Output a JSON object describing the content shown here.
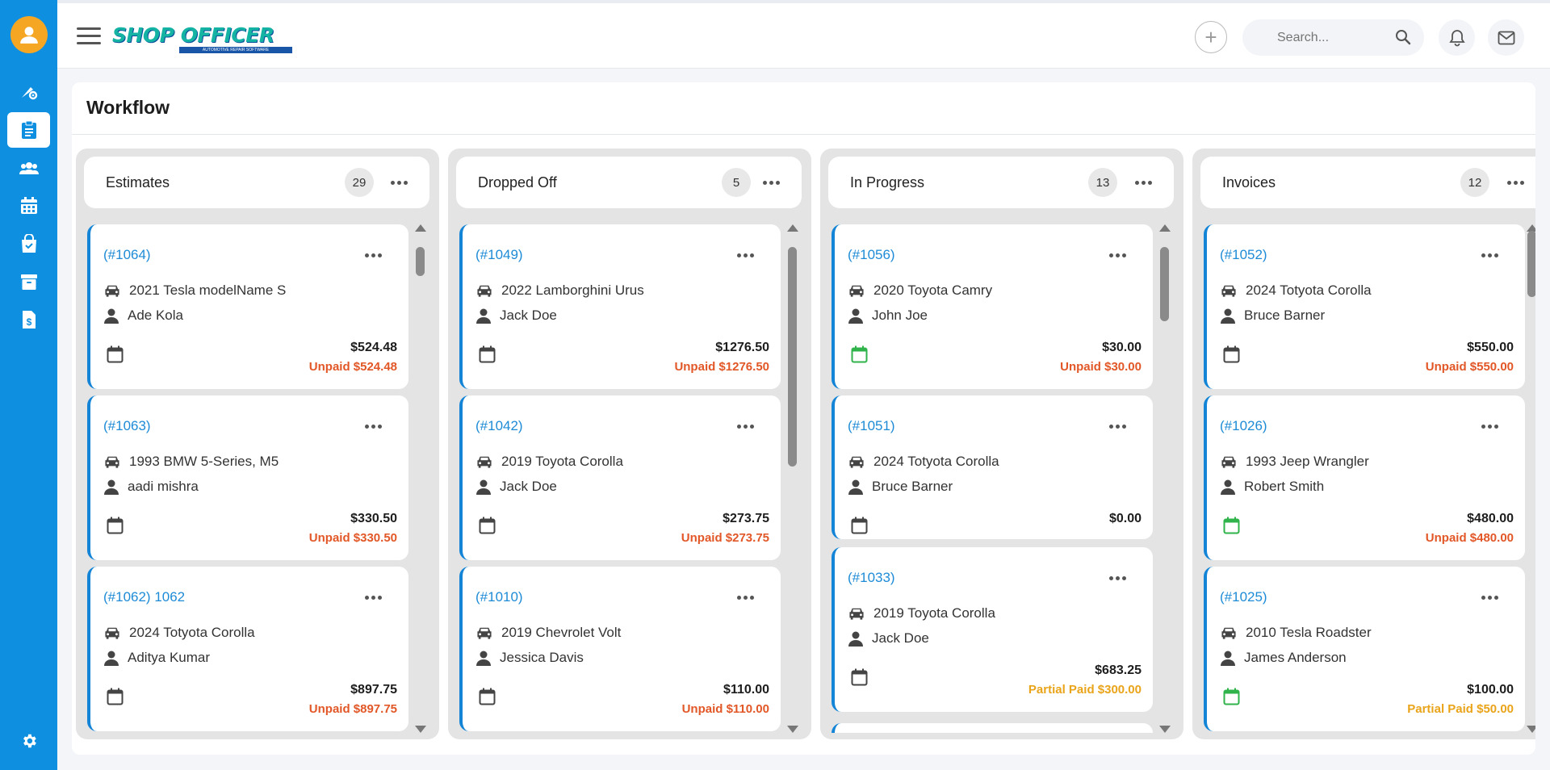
{
  "app": {
    "logo_text": "SHOP OFFICER",
    "logo_tagline": "AUTOMOTIVE REPAIR SOFTWARE"
  },
  "colors": {
    "sidebar": "#0f8fe0",
    "accent": "#1e8bd6",
    "unpaid": "#e25727",
    "partial": "#e9a41a",
    "avatar": "#f5a623"
  },
  "sidebar": {
    "items": [
      {
        "icon": "tools-gear-icon"
      },
      {
        "icon": "clipboard-icon",
        "active": true
      },
      {
        "icon": "users-icon"
      },
      {
        "icon": "calendar-icon"
      },
      {
        "icon": "shopping-bag-icon"
      },
      {
        "icon": "archive-icon"
      },
      {
        "icon": "invoice-dollar-icon"
      },
      {
        "icon": "settings-gear-icon"
      }
    ]
  },
  "topbar": {
    "search_placeholder": "Search..."
  },
  "page": {
    "title": "Workflow"
  },
  "columns": [
    {
      "title": "Estimates",
      "count": "29",
      "cards": [
        {
          "id": "(#1064)",
          "vehicle": "2021 Tesla modelName S",
          "customer": "Ade Kola",
          "amount": "$524.48",
          "status": "Unpaid $524.48",
          "status_type": "unpaid",
          "calendar_color": "#444444"
        },
        {
          "id": "(#1063)",
          "vehicle": "1993 BMW 5-Series, M5",
          "customer": "aadi mishra",
          "amount": "$330.50",
          "status": "Unpaid $330.50",
          "status_type": "unpaid",
          "calendar_color": "#444444"
        },
        {
          "id": "(#1062) 1062",
          "vehicle": "2024 Totyota Corolla",
          "customer": "Aditya Kumar",
          "amount": "$897.75",
          "status": "Unpaid $897.75",
          "status_type": "unpaid",
          "calendar_color": "#444444"
        }
      ]
    },
    {
      "title": "Dropped Off",
      "count": "5",
      "cards": [
        {
          "id": "(#1049)",
          "vehicle": "2022 Lamborghini Urus",
          "customer": "Jack Doe",
          "amount": "$1276.50",
          "status": "Unpaid $1276.50",
          "status_type": "unpaid",
          "calendar_color": "#444444"
        },
        {
          "id": "(#1042)",
          "vehicle": "2019 Toyota Corolla",
          "customer": "Jack Doe",
          "amount": "$273.75",
          "status": "Unpaid $273.75",
          "status_type": "unpaid",
          "calendar_color": "#444444"
        },
        {
          "id": "(#1010)",
          "vehicle": "2019 Chevrolet Volt",
          "customer": "Jessica Davis",
          "amount": "$110.00",
          "status": "Unpaid $110.00",
          "status_type": "unpaid",
          "calendar_color": "#444444"
        }
      ]
    },
    {
      "title": "In Progress",
      "count": "13",
      "cards": [
        {
          "id": "(#1056)",
          "vehicle": "2020 Toyota Camry",
          "customer": "John Joe",
          "amount": "$30.00",
          "status": "Unpaid $30.00",
          "status_type": "unpaid",
          "calendar_color": "#2fb34a"
        },
        {
          "id": "(#1051)",
          "vehicle": "2024 Totyota Corolla",
          "customer": "Bruce Barner",
          "amount": "$0.00",
          "status": "",
          "status_type": "none",
          "calendar_color": "#444444"
        },
        {
          "id": "(#1033)",
          "vehicle": "2019 Toyota Corolla",
          "customer": "Jack Doe",
          "amount": "$683.25",
          "status": "Partial Paid $300.00",
          "status_type": "partial",
          "calendar_color": "#444444"
        }
      ]
    },
    {
      "title": "Invoices",
      "count": "12",
      "cards": [
        {
          "id": "(#1052)",
          "vehicle": "2024 Totyota Corolla",
          "customer": "Bruce Barner",
          "amount": "$550.00",
          "status": "Unpaid $550.00",
          "status_type": "unpaid",
          "calendar_color": "#444444"
        },
        {
          "id": "(#1026)",
          "vehicle": "1993 Jeep Wrangler",
          "customer": "Robert Smith",
          "amount": "$480.00",
          "status": "Unpaid $480.00",
          "status_type": "unpaid",
          "calendar_color": "#2fb34a"
        },
        {
          "id": "(#1025)",
          "vehicle": "2010 Tesla Roadster",
          "customer": "James Anderson",
          "amount": "$100.00",
          "status": "Partial Paid $50.00",
          "status_type": "partial",
          "calendar_color": "#2fb34a"
        }
      ]
    }
  ]
}
